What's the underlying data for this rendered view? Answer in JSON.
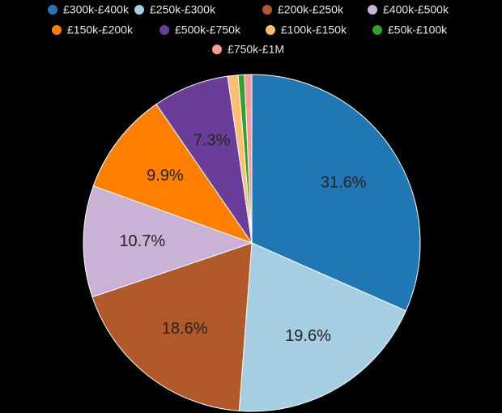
{
  "chart_data": {
    "type": "pie",
    "categories": [
      "£300k-£400k",
      "£250k-£300k",
      "£200k-£250k",
      "£400k-£500k",
      "£150k-£200k",
      "£500k-£750k",
      "£100k-£150k",
      "£50k-£100k",
      "£750k-£1M"
    ],
    "values": [
      31.6,
      19.6,
      18.6,
      10.7,
      9.9,
      7.3,
      1.0,
      0.6,
      0.7
    ],
    "value_labels": [
      "31.6%",
      "19.6%",
      "18.6%",
      "10.7%",
      "9.9%",
      "7.3%",
      null,
      null,
      null
    ],
    "colors": [
      "#1f78b4",
      "#a6cee3",
      "#b15928",
      "#cab2d6",
      "#ff7f00",
      "#6a3d9a",
      "#fdbf6f",
      "#33a02c",
      "#fb9a99"
    ],
    "legend": "top"
  }
}
